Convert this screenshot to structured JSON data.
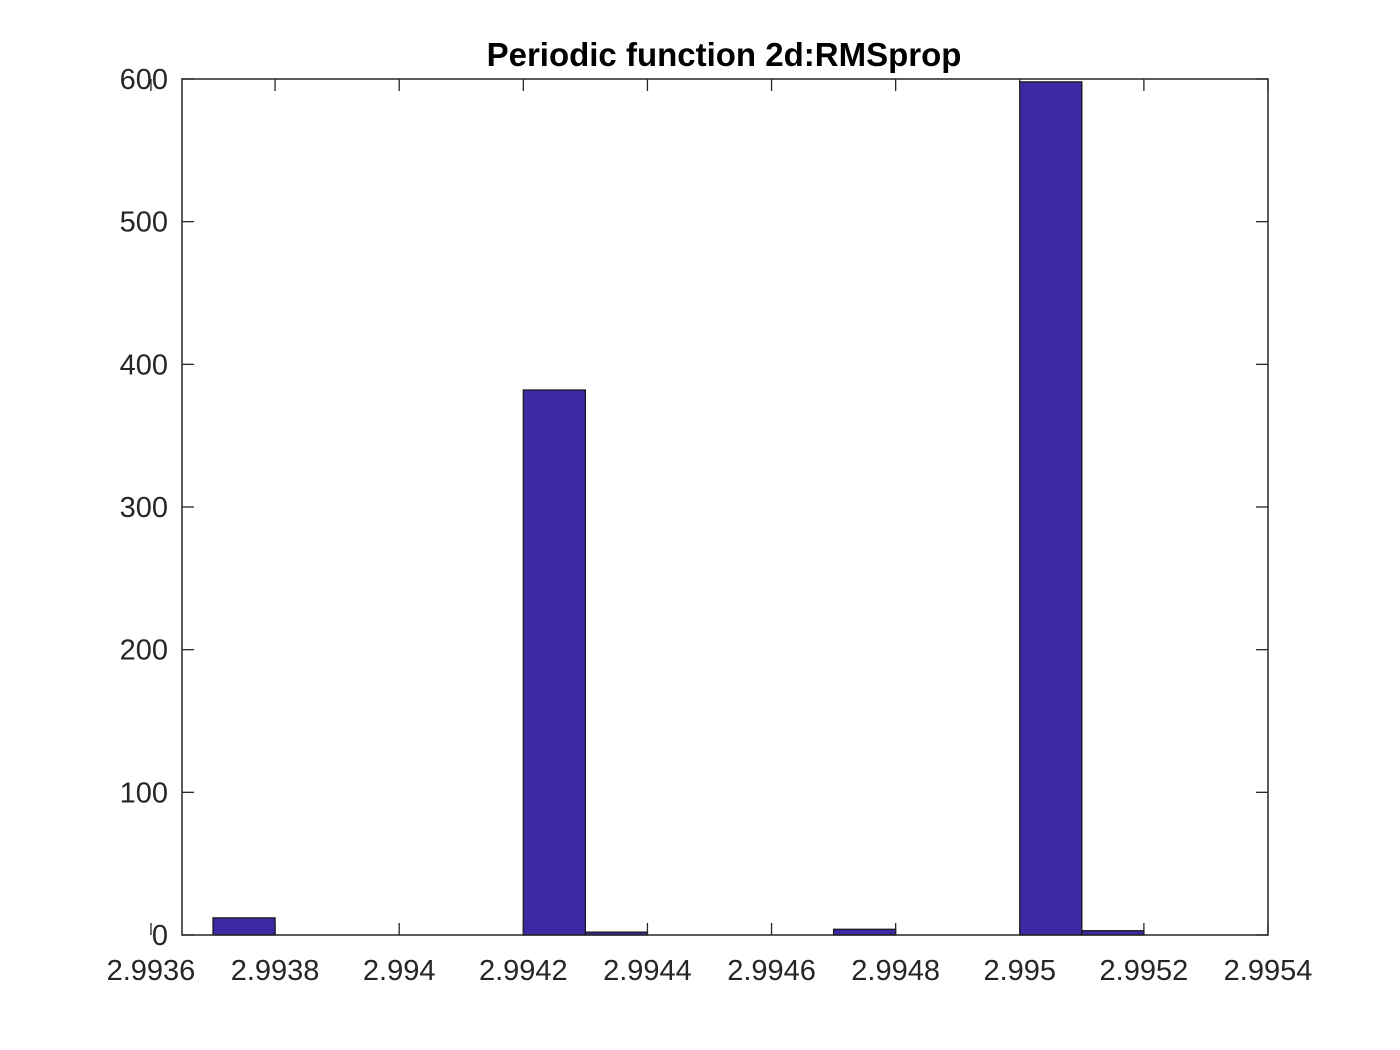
{
  "chart_data": {
    "type": "bar",
    "title": "Periodic function 2d:RMSprop",
    "xlabel": "",
    "ylabel": "",
    "xlim": [
      2.99365,
      2.9954
    ],
    "ylim": [
      0,
      600
    ],
    "bar_width": 0.0001,
    "x": [
      2.99375,
      2.99385,
      2.99395,
      2.99405,
      2.99415,
      2.99425,
      2.99435,
      2.99445,
      2.99455,
      2.99465,
      2.99475,
      2.99485,
      2.99495,
      2.99505,
      2.99515,
      2.99525
    ],
    "values": [
      12,
      0,
      0,
      0,
      0,
      382,
      2,
      0,
      0,
      0,
      4,
      0,
      0,
      598,
      3,
      0
    ],
    "x_ticks": [
      2.9936,
      2.9938,
      2.994,
      2.9942,
      2.9944,
      2.9946,
      2.9948,
      2.995,
      2.9952,
      2.9954
    ],
    "x_tick_labels": [
      "2.9936",
      "2.9938",
      "2.994",
      "2.9942",
      "2.9944",
      "2.9946",
      "2.9948",
      "2.995",
      "2.9952",
      "2.9954"
    ],
    "y_ticks": [
      0,
      100,
      200,
      300,
      400,
      500,
      600
    ],
    "y_tick_labels": [
      "0",
      "100",
      "200",
      "300",
      "400",
      "500",
      "600"
    ],
    "bar_color": "#3d28a6",
    "grid": false,
    "legend": "none"
  }
}
